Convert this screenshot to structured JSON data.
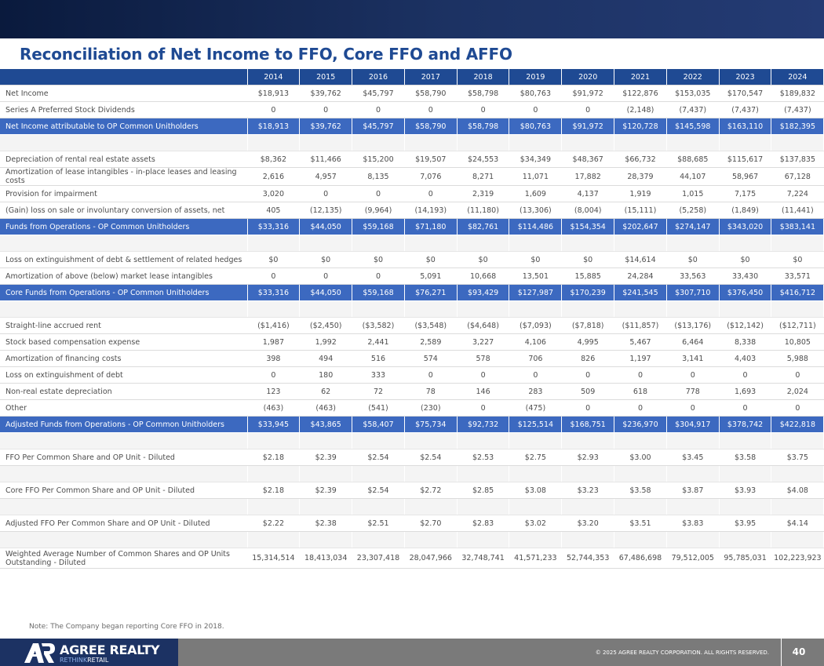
{
  "title": "Reconciliation of Net Income to FFO, Core FFO and AFFO",
  "years": [
    "2014",
    "2015",
    "2016",
    "2017",
    "2018",
    "2019",
    "2020",
    "2021",
    "2022",
    "2023",
    "2024"
  ],
  "rows": [
    {
      "kind": "r",
      "label": "Net Income",
      "values": [
        "$18,913",
        "$39,762",
        "$45,797",
        "$58,790",
        "$58,798",
        "$80,763",
        "$91,972",
        "$122,876",
        "$153,035",
        "$170,547",
        "$189,832"
      ]
    },
    {
      "kind": "r",
      "label": "Series A Preferred Stock Dividends",
      "values": [
        "0",
        "0",
        "0",
        "0",
        "0",
        "0",
        "0",
        "(2,148)",
        "(7,437)",
        "(7,437)",
        "(7,437)"
      ]
    },
    {
      "kind": "hl",
      "label": "Net Income attributable to OP Common Unitholders",
      "values": [
        "$18,913",
        "$39,762",
        "$45,797",
        "$58,790",
        "$58,798",
        "$80,763",
        "$91,972",
        "$120,728",
        "$145,598",
        "$163,110",
        "$182,395"
      ]
    },
    {
      "kind": "sp"
    },
    {
      "kind": "r",
      "label": "Depreciation of rental real estate assets",
      "values": [
        "$8,362",
        "$11,466",
        "$15,200",
        "$19,507",
        "$24,553",
        "$34,349",
        "$48,367",
        "$66,732",
        "$88,685",
        "$115,617",
        "$137,835"
      ]
    },
    {
      "kind": "r",
      "label": "Amortization of lease intangibles - in-place leases and leasing costs",
      "values": [
        "2,616",
        "4,957",
        "8,135",
        "7,076",
        "8,271",
        "11,071",
        "17,882",
        "28,379",
        "44,107",
        "58,967",
        "67,128"
      ]
    },
    {
      "kind": "r",
      "label": "Provision for impairment",
      "values": [
        "3,020",
        "0",
        "0",
        "0",
        "2,319",
        "1,609",
        "4,137",
        "1,919",
        "1,015",
        "7,175",
        "7,224"
      ]
    },
    {
      "kind": "r",
      "label": "(Gain) loss on sale or involuntary conversion of assets, net",
      "values": [
        "405",
        "(12,135)",
        "(9,964)",
        "(14,193)",
        "(11,180)",
        "(13,306)",
        "(8,004)",
        "(15,111)",
        "(5,258)",
        "(1,849)",
        "(11,441)"
      ]
    },
    {
      "kind": "hl",
      "label": "Funds from Operations - OP Common Unitholders",
      "values": [
        "$33,316",
        "$44,050",
        "$59,168",
        "$71,180",
        "$82,761",
        "$114,486",
        "$154,354",
        "$202,647",
        "$274,147",
        "$343,020",
        "$383,141"
      ]
    },
    {
      "kind": "sp"
    },
    {
      "kind": "r",
      "label": "Loss on extinguishment of debt & settlement of related hedges",
      "values": [
        "$0",
        "$0",
        "$0",
        "$0",
        "$0",
        "$0",
        "$0",
        "$14,614",
        "$0",
        "$0",
        "$0"
      ]
    },
    {
      "kind": "r",
      "label": "Amortization of above (below) market lease intangibles",
      "values": [
        "0",
        "0",
        "0",
        "5,091",
        "10,668",
        "13,501",
        "15,885",
        "24,284",
        "33,563",
        "33,430",
        "33,571"
      ]
    },
    {
      "kind": "hl",
      "label": "Core Funds from Operations - OP Common Unitholders",
      "values": [
        "$33,316",
        "$44,050",
        "$59,168",
        "$76,271",
        "$93,429",
        "$127,987",
        "$170,239",
        "$241,545",
        "$307,710",
        "$376,450",
        "$416,712"
      ]
    },
    {
      "kind": "sp"
    },
    {
      "kind": "r",
      "label": "Straight-line accrued rent",
      "values": [
        "($1,416)",
        "($2,450)",
        "($3,582)",
        "($3,548)",
        "($4,648)",
        "($7,093)",
        "($7,818)",
        "($11,857)",
        "($13,176)",
        "($12,142)",
        "($12,711)"
      ]
    },
    {
      "kind": "r",
      "label": "Stock based compensation expense",
      "values": [
        "1,987",
        "1,992",
        "2,441",
        "2,589",
        "3,227",
        "4,106",
        "4,995",
        "5,467",
        "6,464",
        "8,338",
        "10,805"
      ]
    },
    {
      "kind": "r",
      "label": "Amortization of financing costs",
      "values": [
        "398",
        "494",
        "516",
        "574",
        "578",
        "706",
        "826",
        "1,197",
        "3,141",
        "4,403",
        "5,988"
      ]
    },
    {
      "kind": "r",
      "label": "Loss on extinguishment of debt",
      "values": [
        "0",
        "180",
        "333",
        "0",
        "0",
        "0",
        "0",
        "0",
        "0",
        "0",
        "0"
      ]
    },
    {
      "kind": "r",
      "label": "Non-real estate depreciation",
      "values": [
        "123",
        "62",
        "72",
        "78",
        "146",
        "283",
        "509",
        "618",
        "778",
        "1,693",
        "2,024"
      ]
    },
    {
      "kind": "r",
      "label": "Other",
      "values": [
        "(463)",
        "(463)",
        "(541)",
        "(230)",
        "0",
        "(475)",
        "0",
        "0",
        "0",
        "0",
        "0"
      ]
    },
    {
      "kind": "hl",
      "label": "Adjusted Funds from Operations - OP Common Unitholders",
      "values": [
        "$33,945",
        "$43,865",
        "$58,407",
        "$75,734",
        "$92,732",
        "$125,514",
        "$168,751",
        "$236,970",
        "$304,917",
        "$378,742",
        "$422,818"
      ]
    },
    {
      "kind": "sp"
    },
    {
      "kind": "r",
      "label": "FFO Per Common Share and OP Unit - Diluted",
      "values": [
        "$2.18",
        "$2.39",
        "$2.54",
        "$2.54",
        "$2.53",
        "$2.75",
        "$2.93",
        "$3.00",
        "$3.45",
        "$3.58",
        "$3.75"
      ]
    },
    {
      "kind": "sp"
    },
    {
      "kind": "r",
      "label": "Core FFO Per Common Share and OP Unit - Diluted",
      "values": [
        "$2.18",
        "$2.39",
        "$2.54",
        "$2.72",
        "$2.85",
        "$3.08",
        "$3.23",
        "$3.58",
        "$3.87",
        "$3.93",
        "$4.08"
      ]
    },
    {
      "kind": "sp"
    },
    {
      "kind": "r",
      "label": "Adjusted FFO Per Common Share and OP Unit - Diluted",
      "values": [
        "$2.22",
        "$2.38",
        "$2.51",
        "$2.70",
        "$2.83",
        "$3.02",
        "$3.20",
        "$3.51",
        "$3.83",
        "$3.95",
        "$4.14"
      ]
    },
    {
      "kind": "sp"
    },
    {
      "kind": "r",
      "tall": true,
      "label": "Weighted Average Number of Common Shares and OP Units Outstanding - Diluted",
      "values": [
        "15,314,514",
        "18,413,034",
        "23,307,418",
        "28,047,966",
        "32,748,741",
        "41,571,233",
        "52,744,353",
        "67,486,698",
        "79,512,005",
        "95,785,031",
        "102,223,923"
      ]
    }
  ],
  "note": "Note: The Company began reporting Core FFO in 2018.",
  "footer": {
    "brand": "AGREE REALTY",
    "tagline_re": "RETHINK",
    "tagline_rest": "RETAIL",
    "copyright": "© 2025 AGREE REALTY CORPORATION. ALL RIGHTS RESERVED.",
    "page_number": "40"
  },
  "colors": {
    "title_blue": "#1f4a93",
    "highlight_row": "#3c69c0",
    "header_row": "#1f4a93",
    "footer_gray": "#7a7a7a",
    "footer_navy": "#1c3263"
  }
}
